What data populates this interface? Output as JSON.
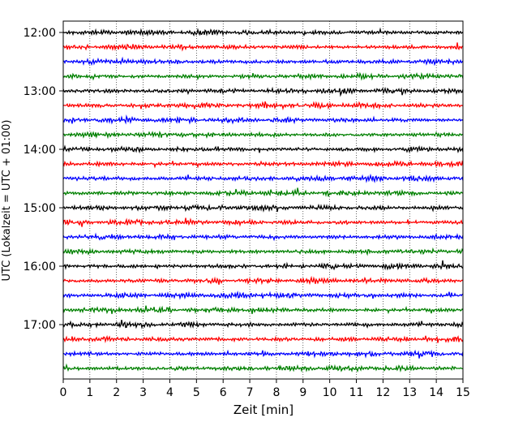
{
  "chart_data": {
    "type": "line",
    "xlabel": "Zeit  [min]",
    "ylabel": "UTC (Lokalzeit = UTC + 01:00)",
    "xlim": [
      0,
      15
    ],
    "xticks": [
      "0",
      "1",
      "2",
      "3",
      "4",
      "5",
      "6",
      "7",
      "8",
      "9",
      "10",
      "11",
      "12",
      "13",
      "14",
      "15"
    ],
    "yticks": [
      "12:00",
      "13:00",
      "14:00",
      "15:00",
      "16:00",
      "17:00"
    ],
    "grid": "vertical-dotted",
    "traces_per_hour": 4,
    "trace_count": 24,
    "trace_colors": [
      "#000000",
      "#ff0000",
      "#0000ff",
      "#008000"
    ]
  }
}
